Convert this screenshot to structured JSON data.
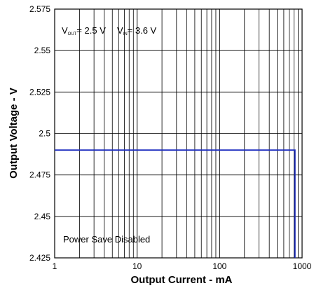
{
  "chart_data": {
    "type": "line",
    "x_scale": "log",
    "xlim": [
      1,
      1000
    ],
    "ylim": [
      2.425,
      2.575
    ],
    "x_ticks": [
      1,
      10,
      100,
      1000
    ],
    "x_tick_labels": [
      "1",
      "10",
      "100",
      "1000"
    ],
    "y_ticks": [
      2.425,
      2.45,
      2.475,
      2.5,
      2.525,
      2.55,
      2.575
    ],
    "y_tick_labels": [
      "2.425",
      "2.45",
      "2.475",
      "2.5",
      "2.525",
      "2.55",
      "2.575"
    ],
    "xlabel": "Output Current - mA",
    "ylabel": "Output Voltage - V",
    "grid": true,
    "series": [
      {
        "color": "#1f2fbf",
        "x": [
          1,
          820,
          820
        ],
        "y": [
          2.49,
          2.49,
          2.425
        ]
      }
    ],
    "annotations": {
      "vout": {
        "main": "V",
        "sub": "OUT",
        "rest": "= 2.5 V"
      },
      "vin": {
        "main": "V",
        "sub": "IN",
        "rest": "= 3.6 V"
      },
      "mode": "Power Save Disabled"
    }
  }
}
